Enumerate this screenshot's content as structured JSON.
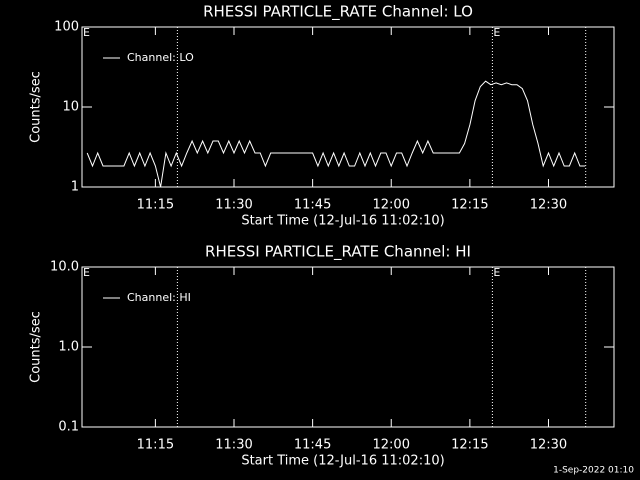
{
  "chart_data": [
    {
      "type": "line",
      "title": "RHESSI PARTICLE_RATE Channel: LO",
      "xlabel": "Start Time (12-Jul-16 11:02:10)",
      "ylabel": "Counts/sec",
      "log_y": true,
      "ylim": [
        1,
        100
      ],
      "yticks": [
        1,
        10,
        100
      ],
      "xlim": [
        661,
        762.5
      ],
      "xticks": [
        {
          "value": 675,
          "label": "11:15"
        },
        {
          "value": 690,
          "label": "11:30"
        },
        {
          "value": 705,
          "label": "11:45"
        },
        {
          "value": 720,
          "label": "12:00"
        },
        {
          "value": 735,
          "label": "12:15"
        },
        {
          "value": 750,
          "label": "12:30"
        }
      ],
      "legend": "top-left",
      "vlines": [
        679.2,
        739.3,
        757.1
      ],
      "annotations": [
        {
          "x": 661,
          "text": "E"
        },
        {
          "x": 739.3,
          "text": "E"
        }
      ],
      "series": [
        {
          "name": "Channel: LO",
          "color": "#ffffff",
          "x": [
            662,
            663,
            664,
            665,
            666,
            667,
            668,
            669,
            670,
            671,
            672,
            673,
            674,
            675,
            676,
            677,
            678,
            679,
            680,
            681,
            682,
            683,
            684,
            685,
            686,
            687,
            688,
            689,
            690,
            691,
            692,
            693,
            694,
            695,
            696,
            697,
            698,
            699,
            700,
            701,
            702,
            703,
            704,
            705,
            706,
            707,
            708,
            709,
            710,
            711,
            712,
            713,
            714,
            715,
            716,
            717,
            718,
            719,
            720,
            721,
            722,
            723,
            724,
            725,
            726,
            727,
            728,
            729,
            730,
            731,
            732,
            733,
            734,
            735,
            736,
            737,
            738,
            739,
            740,
            741,
            742,
            743,
            744,
            745,
            746,
            747,
            748,
            749,
            750,
            751,
            752,
            753,
            754,
            755,
            756,
            757
          ],
          "values": [
            2.66,
            1.83,
            2.66,
            1.83,
            1.83,
            1.83,
            1.83,
            1.83,
            2.66,
            1.83,
            2.66,
            1.83,
            2.66,
            1.83,
            1.0,
            2.66,
            1.83,
            2.66,
            1.83,
            2.66,
            3.76,
            2.66,
            3.76,
            2.66,
            3.76,
            3.76,
            2.66,
            3.76,
            2.66,
            3.76,
            2.66,
            3.76,
            2.66,
            2.66,
            1.83,
            2.66,
            2.66,
            2.66,
            2.66,
            2.66,
            2.66,
            2.66,
            2.66,
            2.66,
            1.83,
            2.66,
            1.83,
            2.66,
            1.83,
            2.66,
            1.83,
            1.83,
            2.66,
            1.83,
            2.66,
            1.83,
            2.66,
            2.66,
            1.83,
            2.66,
            2.66,
            1.83,
            2.66,
            3.76,
            2.66,
            3.76,
            2.66,
            2.66,
            2.66,
            2.66,
            2.66,
            2.66,
            3.5,
            6,
            12,
            18,
            21,
            19,
            20,
            19,
            20,
            19,
            19,
            17,
            12,
            6,
            3.5,
            1.83,
            2.66,
            1.83,
            2.66,
            1.83,
            1.83,
            2.66,
            1.83,
            1.83
          ]
        }
      ]
    },
    {
      "type": "line",
      "title": "RHESSI PARTICLE_RATE Channel: HI",
      "xlabel": "Start Time (12-Jul-16 11:02:10)",
      "ylabel": "Counts/sec",
      "log_y": true,
      "ylim": [
        0.1,
        10
      ],
      "yticks": [
        0.1,
        {
          "value": 1,
          "label": "1.0"
        },
        {
          "value": 10,
          "label": "10.0"
        }
      ],
      "xlim": [
        661,
        762.5
      ],
      "xticks": [
        {
          "value": 675,
          "label": "11:15"
        },
        {
          "value": 690,
          "label": "11:30"
        },
        {
          "value": 705,
          "label": "11:45"
        },
        {
          "value": 720,
          "label": "12:00"
        },
        {
          "value": 735,
          "label": "12:15"
        },
        {
          "value": 750,
          "label": "12:30"
        }
      ],
      "legend": "top-left",
      "vlines": [
        679.2,
        739.3,
        757.1
      ],
      "annotations": [
        {
          "x": 661,
          "text": "E"
        },
        {
          "x": 739.3,
          "text": "E"
        }
      ],
      "series": [
        {
          "name": "Channel: HI",
          "color": "#ffffff",
          "x": [],
          "values": []
        }
      ]
    }
  ],
  "footer": "1-Sep-2022 01:10"
}
